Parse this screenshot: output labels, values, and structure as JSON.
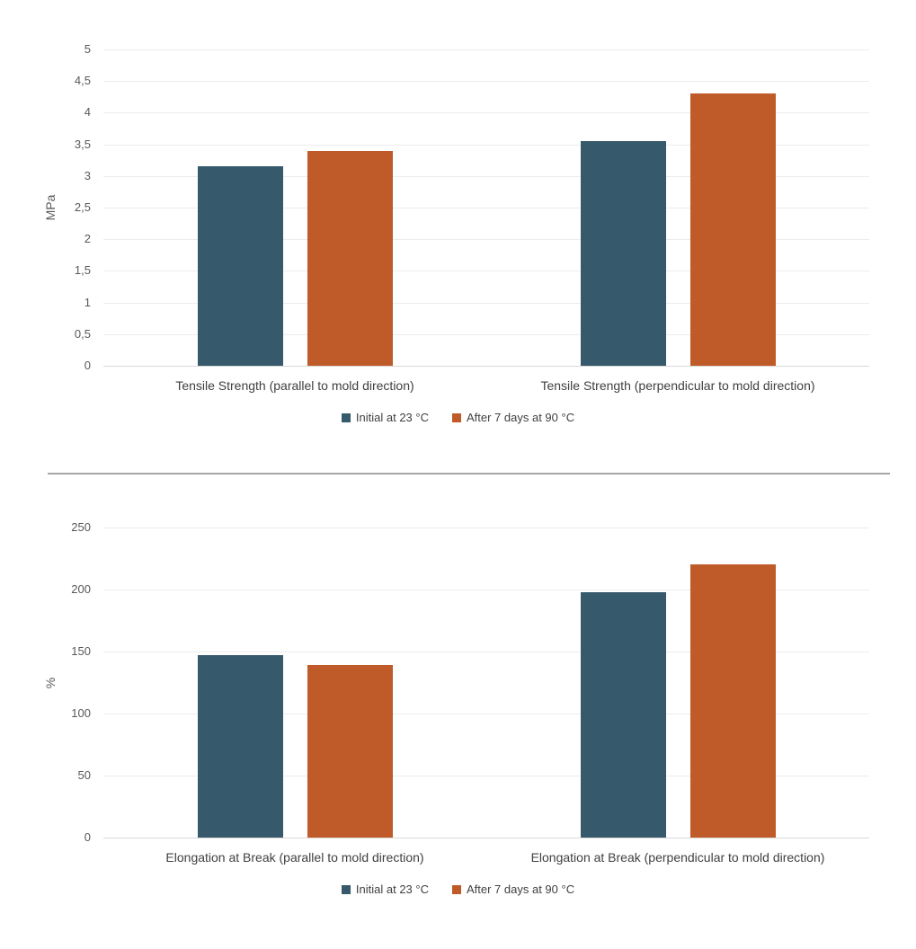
{
  "page": {
    "background": "#ffffff"
  },
  "colors": {
    "series_colors": [
      "#36596b",
      "#bf5b28"
    ],
    "gridline": "#ececec",
    "axis_line": "#d9d9d9",
    "tick_label": "#595959",
    "axis_title": "#595959",
    "category_label": "#404040",
    "legend_text": "#404040",
    "divider": "#a6a6a6"
  },
  "legend": {
    "items": [
      {
        "label": "Initial at 23 °C",
        "color": "#36596b"
      },
      {
        "label": "After 7 days at 90 °C",
        "color": "#bf5b28"
      }
    ]
  },
  "chart_data": [
    {
      "type": "bar",
      "title": "",
      "xlabel": "",
      "ylabel": "MPa",
      "ylim": [
        0,
        5
      ],
      "ytick_step": 0.5,
      "yticks": [
        "5",
        "4,5",
        "4",
        "3,5",
        "3",
        "2,5",
        "2",
        "1,5",
        "1",
        "0,5",
        "0"
      ],
      "grid": true,
      "legend_position": "bottom",
      "categories": [
        "Tensile Strength (parallel to mold direction)",
        "Tensile Strength (perpendicular to mold direction)"
      ],
      "series": [
        {
          "name": "Initial at 23 °C",
          "values": [
            3.15,
            3.55
          ]
        },
        {
          "name": "After 7 days at 90 °C",
          "values": [
            3.4,
            4.3
          ]
        }
      ]
    },
    {
      "type": "bar",
      "title": "",
      "xlabel": "",
      "ylabel": "%",
      "ylim": [
        0,
        250
      ],
      "ytick_step": 50,
      "yticks": [
        "250",
        "200",
        "150",
        "100",
        "50",
        "0"
      ],
      "grid": true,
      "legend_position": "bottom",
      "categories": [
        "Elongation at Break (parallel to mold direction)",
        "Elongation at Break (perpendicular to mold direction)"
      ],
      "series": [
        {
          "name": "Initial at 23 °C",
          "values": [
            147,
            198
          ]
        },
        {
          "name": "After 7 days at 90 °C",
          "values": [
            139,
            220
          ]
        }
      ]
    }
  ]
}
